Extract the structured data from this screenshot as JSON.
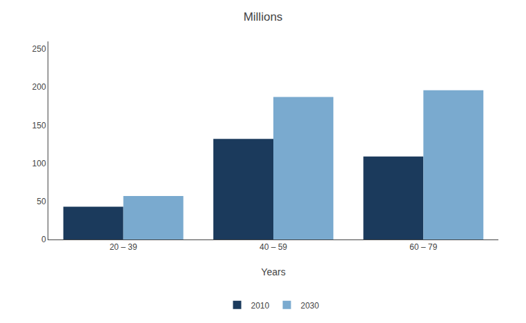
{
  "chart_data": {
    "type": "bar",
    "title": "Millions",
    "xlabel": "Years",
    "categories": [
      "20 – 39",
      "40 – 59",
      "60 – 79"
    ],
    "series": [
      {
        "name": "2010",
        "color": "#1b3a5c",
        "values": [
          43,
          132,
          109
        ]
      },
      {
        "name": "2030",
        "color": "#7aaacf",
        "values": [
          57,
          187,
          196
        ]
      }
    ],
    "ylim": [
      0,
      260
    ],
    "yticks": [
      0,
      50,
      100,
      150,
      200,
      250
    ],
    "grid": false,
    "legend": "bottom"
  }
}
